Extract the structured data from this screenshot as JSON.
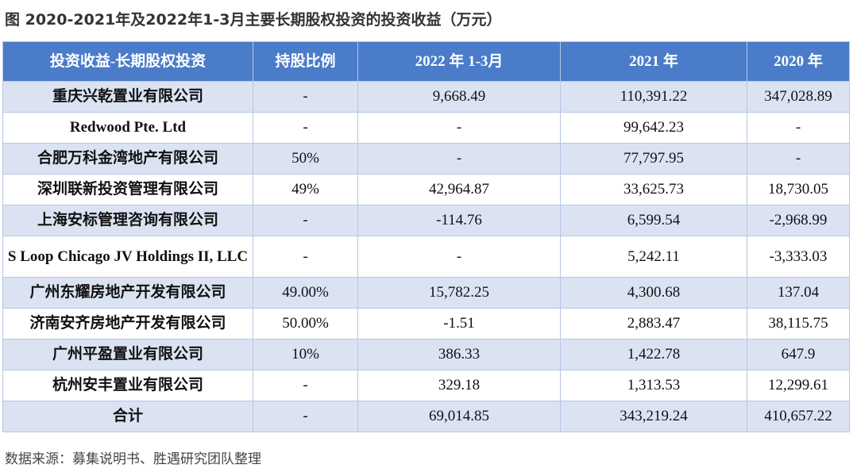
{
  "title": "图 2020-2021年及2022年1-3月主要长期股权投资的投资收益（万元）",
  "table": {
    "header": [
      "投资收益-长期股权投资",
      "持股比例",
      "2022 年 1-3月",
      "2021 年",
      "2020 年"
    ],
    "rows": [
      [
        "重庆兴乾置业有限公司",
        "-",
        "9,668.49",
        "110,391.22",
        "347,028.89"
      ],
      [
        "Redwood Pte. Ltd",
        "-",
        "-",
        "99,642.23",
        "-"
      ],
      [
        "合肥万科金湾地产有限公司",
        "50%",
        "-",
        "77,797.95",
        "-"
      ],
      [
        "深圳联新投资管理有限公司",
        "49%",
        "42,964.87",
        "33,625.73",
        "18,730.05"
      ],
      [
        "上海安标管理咨询有限公司",
        "-",
        "-114.76",
        "6,599.54",
        "-2,968.99"
      ],
      [
        "S Loop Chicago JV Holdings II, LLC",
        "-",
        "-",
        "5,242.11",
        "-3,333.03"
      ],
      [
        "广州东耀房地产开发有限公司",
        "49.00%",
        "15,782.25",
        "4,300.68",
        "137.04"
      ],
      [
        "济南安齐房地产开发有限公司",
        "50.00%",
        "-1.51",
        "2,883.47",
        "38,115.75"
      ],
      [
        "广州平盈置业有限公司",
        "10%",
        "386.33",
        "1,422.78",
        "647.9"
      ],
      [
        "杭州安丰置业有限公司",
        "-",
        "329.18",
        "1,313.53",
        "12,299.61"
      ],
      [
        "合计",
        "-",
        "69,014.85",
        "343,219.24",
        "410,657.22"
      ]
    ]
  },
  "source": "数据来源：募集说明书、胜遇研究团队整理"
}
